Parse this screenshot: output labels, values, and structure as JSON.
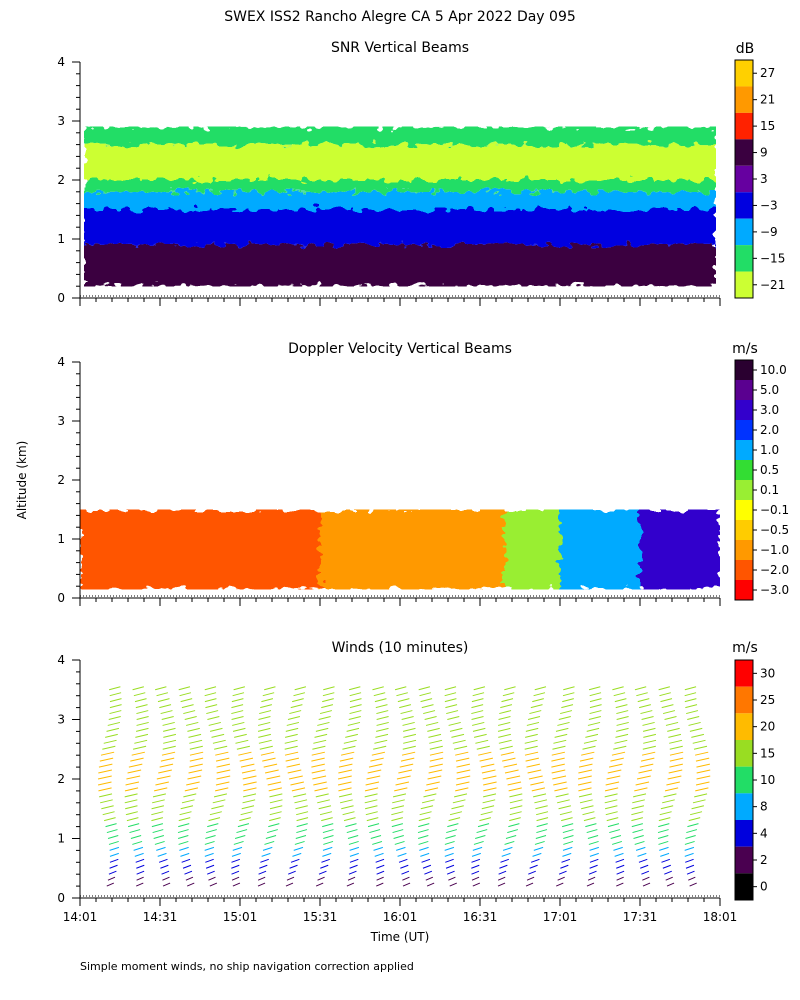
{
  "figure": {
    "title": "SWEX ISS2 Rancho Alegre CA   5 Apr 2022 Day 095",
    "y_axis_label": "Altitude (km)",
    "x_axis_label": "Time (UT)",
    "x_ticks": [
      "14:01",
      "14:31",
      "15:01",
      "15:31",
      "16:01",
      "16:31",
      "17:01",
      "17:31",
      "18:01"
    ],
    "footnote": "Simple moment winds, no ship navigation correction applied"
  },
  "chart_data": [
    {
      "type": "heatmap",
      "title": "SNR Vertical Beams",
      "colorbar_unit": "dB",
      "colorbar_labels": [
        "27",
        "21",
        "15",
        "9",
        "3",
        "−3",
        "−9",
        "−15",
        "−21"
      ],
      "colorbar_colors": [
        "#ffd000",
        "#ff9900",
        "#ff2200",
        "#3a0040",
        "#6600a0",
        "#0000e0",
        "#00aaff",
        "#22dd66",
        "#ccff33"
      ],
      "y_ticks": [
        "0",
        "1",
        "2",
        "3",
        "4"
      ],
      "ylim": [
        0,
        4
      ],
      "x_ticks": [
        "14:01",
        "14:31",
        "15:01",
        "15:31",
        "16:01",
        "16:31",
        "17:01",
        "17:31",
        "18:01"
      ],
      "layers": [
        {
          "from_km": 0.2,
          "to_km": 0.9,
          "color": "#3a0040"
        },
        {
          "from_km": 0.9,
          "to_km": 1.5,
          "color": "#0000e0"
        },
        {
          "from_km": 1.5,
          "to_km": 1.8,
          "color": "#00aaff"
        },
        {
          "from_km": 1.8,
          "to_km": 2.0,
          "color": "#22dd66"
        },
        {
          "from_km": 2.0,
          "to_km": 2.6,
          "color": "#ccff33"
        },
        {
          "from_km": 2.6,
          "to_km": 2.9,
          "color": "#22dd66"
        }
      ]
    },
    {
      "type": "heatmap",
      "title": "Doppler Velocity Vertical Beams",
      "colorbar_unit": "m/s",
      "colorbar_labels": [
        "10.0",
        "5.0",
        "3.0",
        "2.0",
        "1.0",
        "0.5",
        "0.1",
        "−0.1",
        "−0.5",
        "−1.0",
        "−2.0",
        "−3.0"
      ],
      "colorbar_colors": [
        "#2a0030",
        "#5a0090",
        "#3300cc",
        "#0033ff",
        "#00aaff",
        "#33dd33",
        "#99ee33",
        "#ffff00",
        "#ffcc00",
        "#ff9900",
        "#ff5500",
        "#ff0000"
      ],
      "y_ticks": [
        "0",
        "1",
        "2",
        "3",
        "4"
      ],
      "ylim": [
        0,
        4
      ],
      "x_ticks": [
        "14:01",
        "14:31",
        "15:01",
        "15:31",
        "16:01",
        "16:31",
        "17:01",
        "17:31",
        "18:01"
      ],
      "regions": [
        {
          "time_from": "14:01",
          "time_to": "15:31",
          "color": "#ff5500"
        },
        {
          "time_from": "15:31",
          "time_to": "16:40",
          "color": "#ff9900"
        },
        {
          "time_from": "16:40",
          "time_to": "17:01",
          "color": "#99ee33"
        },
        {
          "time_from": "17:01",
          "time_to": "17:31",
          "color": "#00aaff"
        },
        {
          "time_from": "17:31",
          "time_to": "18:01",
          "color": "#3300cc"
        }
      ]
    },
    {
      "type": "barbs",
      "title": "Winds (10 minutes)",
      "colorbar_unit": "m/s",
      "colorbar_labels": [
        "30",
        "25",
        "20",
        "15",
        "10",
        "8",
        "4",
        "2",
        "0"
      ],
      "colorbar_colors": [
        "#ff0000",
        "#ff7700",
        "#ffbb00",
        "#99dd22",
        "#22dd66",
        "#00aaff",
        "#0000dd",
        "#4a0050",
        "#000000"
      ],
      "y_ticks": [
        "0",
        "1",
        "2",
        "3",
        "4"
      ],
      "ylim": [
        0,
        4
      ],
      "x_ticks": [
        "14:01",
        "14:31",
        "15:01",
        "15:31",
        "16:01",
        "16:31",
        "17:01",
        "17:31",
        "18:01"
      ],
      "profile_times": [
        "14:10",
        "14:20",
        "14:30",
        "14:40",
        "14:50",
        "15:00",
        "15:10",
        "15:20",
        "15:30",
        "15:40",
        "15:50",
        "16:00",
        "16:10",
        "16:20",
        "16:30",
        "16:40",
        "16:50",
        "17:00",
        "17:10",
        "17:20",
        "17:30",
        "17:40",
        "17:50"
      ],
      "speed_profile_ms": [
        {
          "alt_km": 0.3,
          "speed": 3
        },
        {
          "alt_km": 0.7,
          "speed": 8
        },
        {
          "alt_km": 1.0,
          "speed": 12
        },
        {
          "alt_km": 1.5,
          "speed": 18
        },
        {
          "alt_km": 2.0,
          "speed": 22
        },
        {
          "alt_km": 2.5,
          "speed": 20
        },
        {
          "alt_km": 3.0,
          "speed": 17
        },
        {
          "alt_km": 3.5,
          "speed": 15
        }
      ]
    }
  ]
}
